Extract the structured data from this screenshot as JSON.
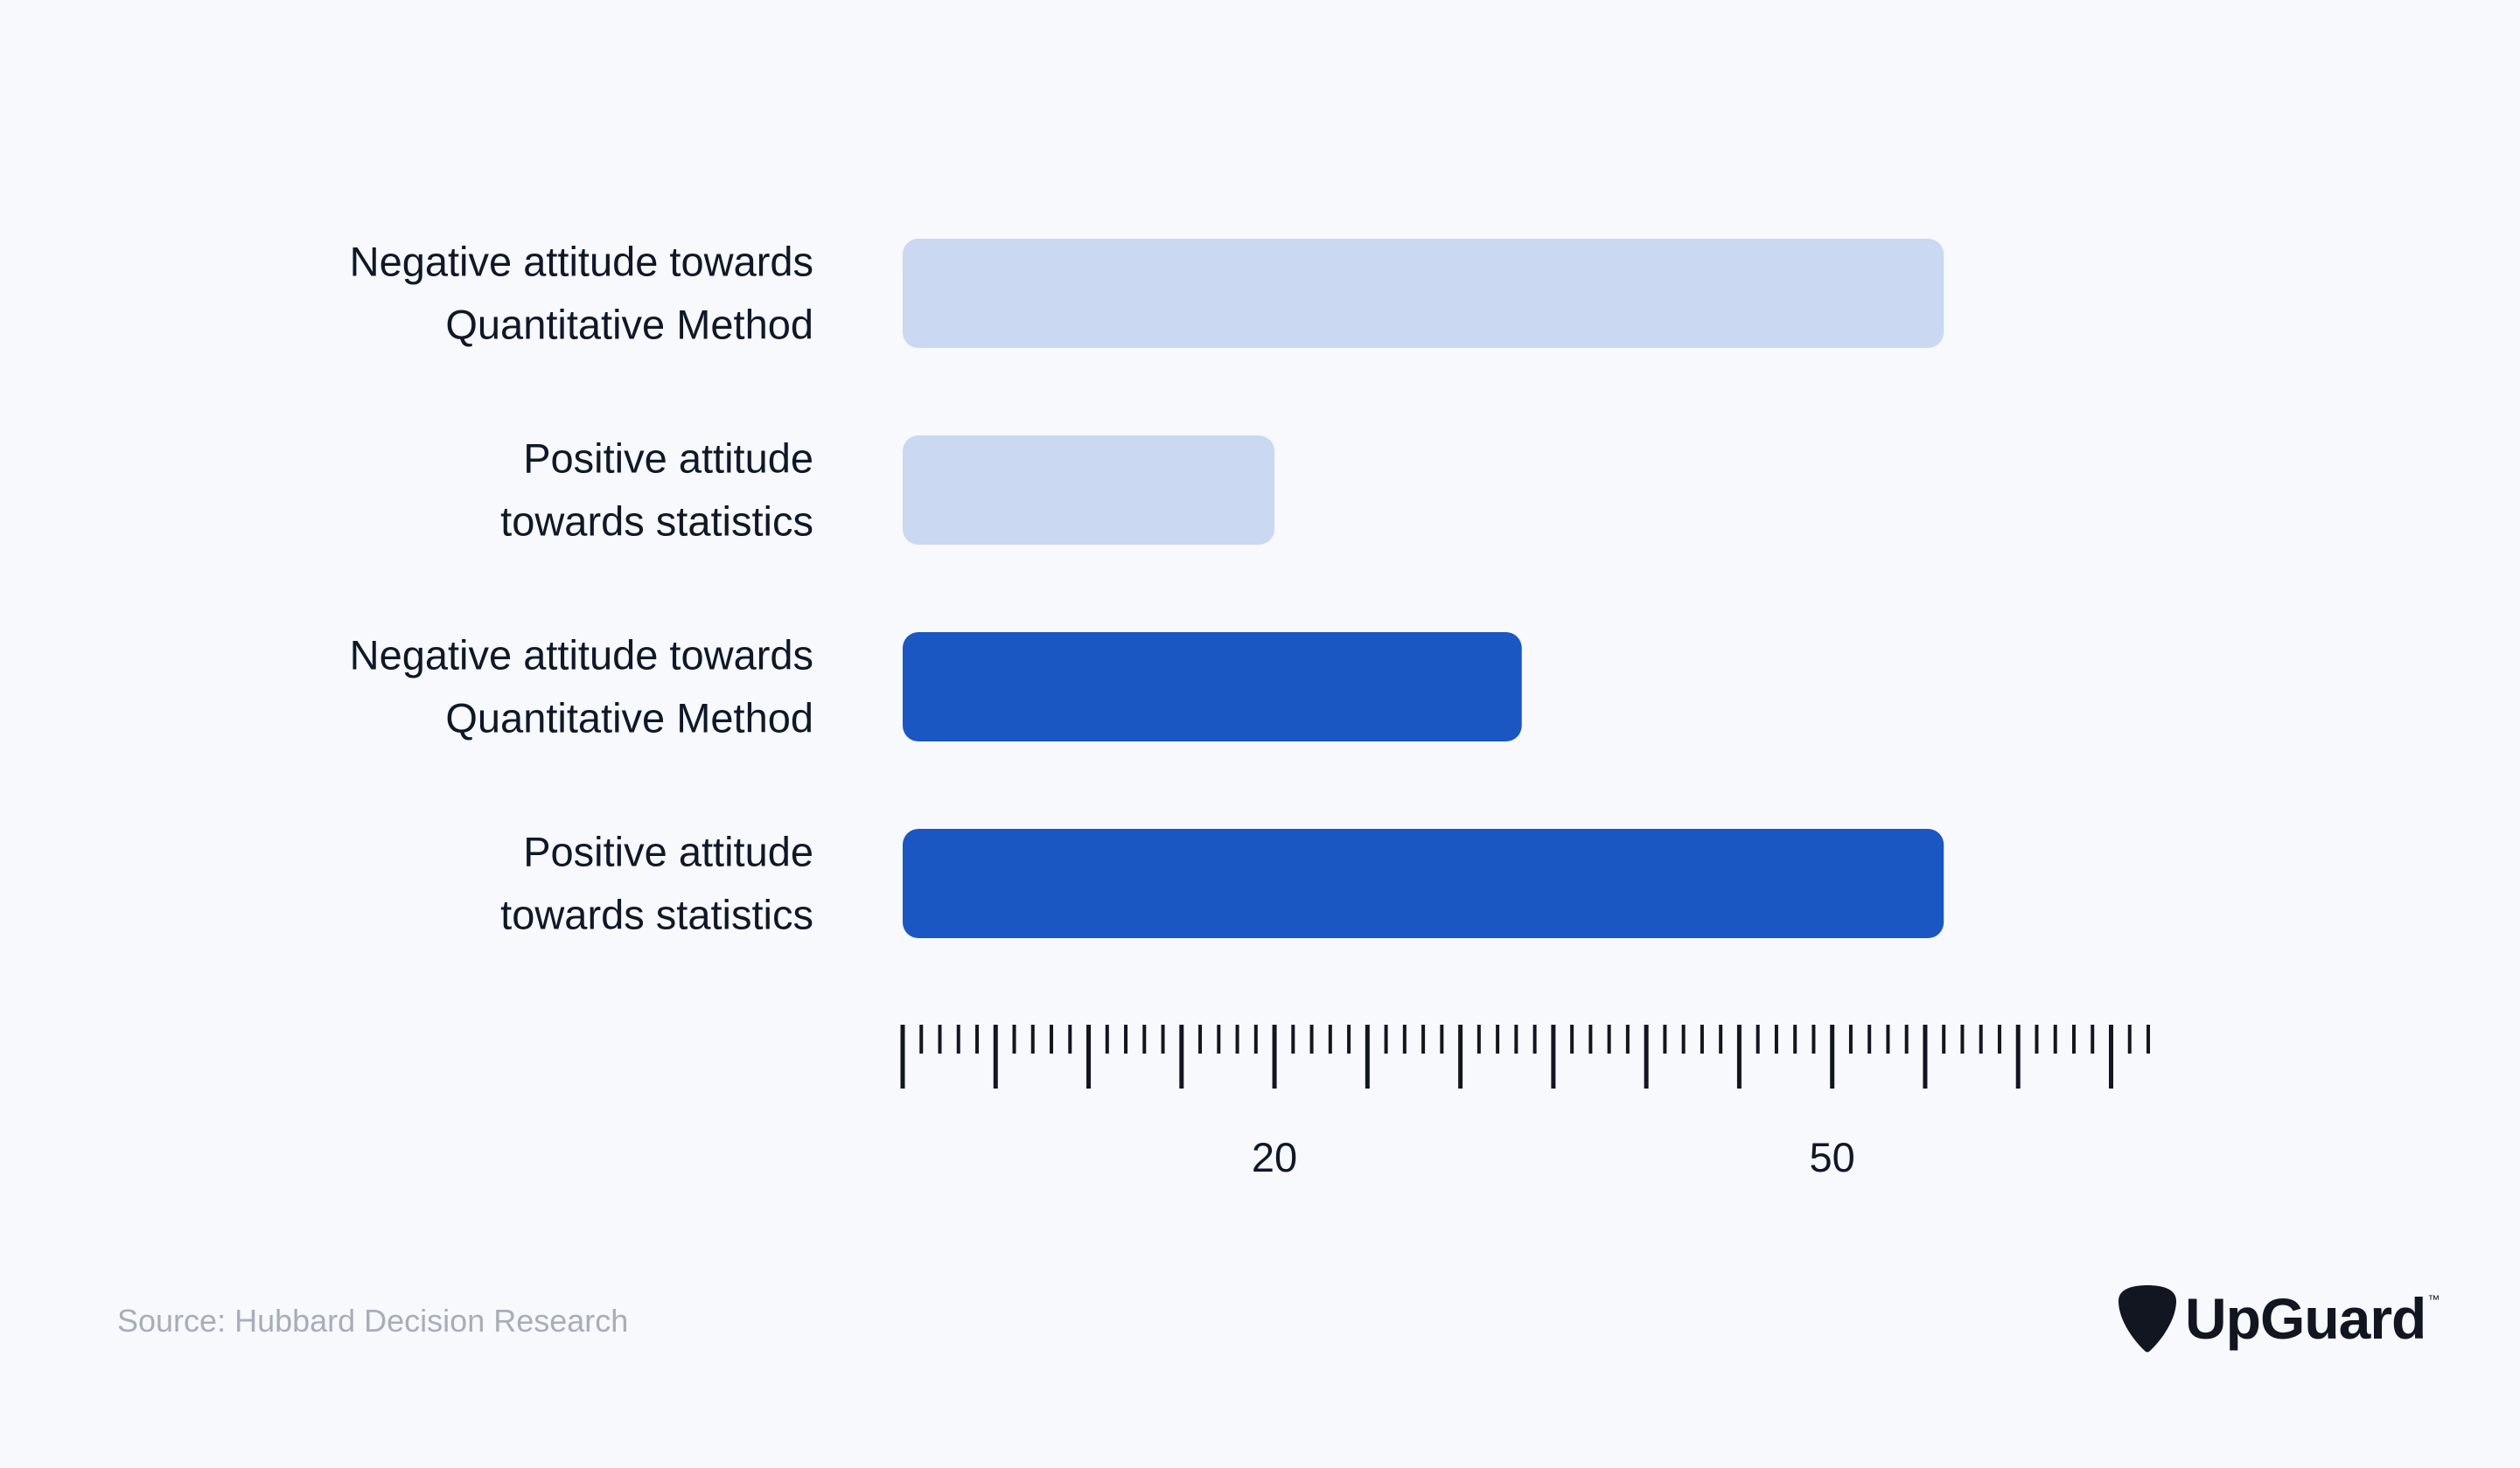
{
  "chart_data": {
    "type": "bar",
    "orientation": "horizontal",
    "categories": [
      [
        "Negative attitude towards",
        "Quantitative Method"
      ],
      [
        "Positive attitude",
        "towards statistics"
      ],
      [
        "Negative attitude towards",
        "Quantitative Method"
      ],
      [
        "Positive attitude",
        "towards statistics"
      ]
    ],
    "values": [
      56,
      20,
      33.3,
      56
    ],
    "bar_colors": [
      "#CAD8F1",
      "#CAD8F1",
      "#1A57C2",
      "#1A57C2"
    ],
    "axis": {
      "min": 0,
      "max": 67,
      "minor_step": 1,
      "major_step": 5,
      "labeled_ticks": [
        20,
        50
      ],
      "tick_labels": [
        "20",
        "50"
      ]
    },
    "title": "",
    "xlabel": "",
    "ylabel": ""
  },
  "footer": {
    "source": "Source: Hubbard Decision Research",
    "brand": "UpGuard",
    "brand_mark": "™"
  },
  "colors": {
    "background": "#F7F9FC",
    "text": "#101828",
    "axis": "#121620",
    "source_text": "#A8AEB8"
  }
}
